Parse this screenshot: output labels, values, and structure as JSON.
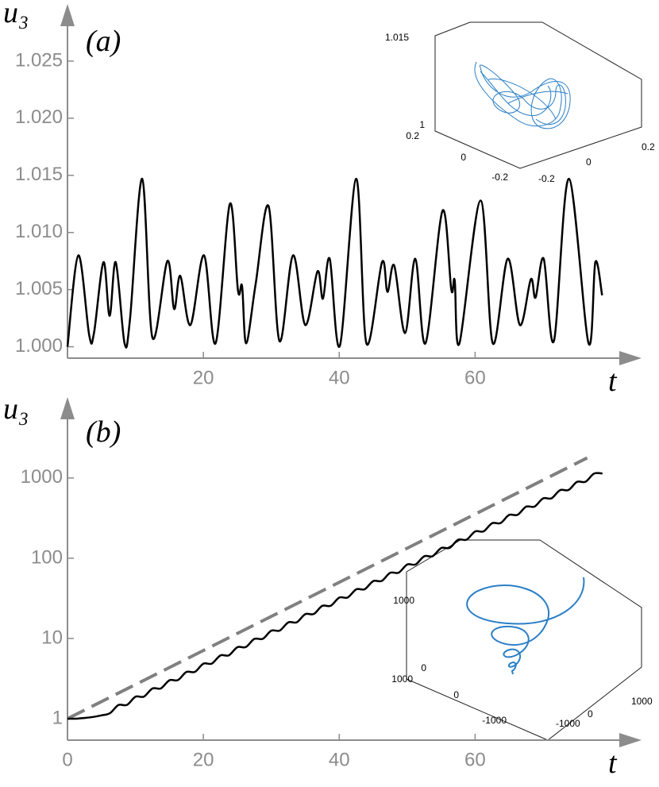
{
  "chart_data": [
    {
      "type": "line",
      "panel_label": "(a)",
      "y_label": "u₃",
      "x_label": "t",
      "x": [
        0,
        1.6,
        3.2,
        3.9,
        5.3,
        6.2,
        7.1,
        8.4,
        9.2,
        11.0,
        12.5,
        14.7,
        15.7,
        16.6,
        18.1,
        20.1,
        21.8,
        23.9,
        25.1,
        25.7,
        26.3,
        27.7,
        29.6,
        31.2,
        33.2,
        35.0,
        36.8,
        37.6,
        38.6,
        40.1,
        42.5,
        44.0,
        46.3,
        47.1,
        48.1,
        49.7,
        51.2,
        52.7,
        55.2,
        56.5,
        57.0,
        57.7,
        60.8,
        62.6,
        64.8,
        66.6,
        68.2,
        68.9,
        70.1,
        71.6,
        73.8,
        76.7,
        77.7,
        78.7
      ],
      "series": [
        {
          "color": "#000000",
          "values": [
            1.0,
            1.008,
            1.001,
            1.0012,
            1.0074,
            1.0027,
            1.0074,
            1.0003,
            1.0024,
            1.0147,
            1.0008,
            1.0075,
            1.0033,
            1.0062,
            1.0019,
            1.008,
            1.0003,
            1.0125,
            1.0049,
            1.0053,
            1.0003,
            1.0055,
            1.0123,
            1.0005,
            1.008,
            1.0019,
            1.0066,
            1.0042,
            1.0077,
            1.0001,
            1.0147,
            1.0003,
            1.0074,
            1.0048,
            1.0071,
            1.0012,
            1.0077,
            1.0003,
            1.0119,
            1.005,
            1.0058,
            1.0003,
            1.0128,
            1.0003,
            1.0077,
            1.0019,
            1.0059,
            1.0043,
            1.0077,
            1.0005,
            1.0147,
            1.0003,
            1.0074,
            1.0045
          ]
        }
      ],
      "xlim": [
        0,
        84.5
      ],
      "ylim": [
        0.999,
        1.03
      ],
      "xticks": [
        20,
        40,
        60
      ],
      "yticks": [
        {
          "value": 1,
          "label": "1.000"
        },
        {
          "value": 1.005,
          "label": "1.005"
        },
        {
          "value": 1.01,
          "label": "1.010"
        },
        {
          "value": 1.015,
          "label": "1.015"
        },
        {
          "value": 1.02,
          "label": "1.020"
        },
        {
          "value": 1.025,
          "label": "1.025"
        }
      ],
      "inset": {
        "z_ticks": [
          1.015,
          1
        ],
        "left_ticks": [
          0.2,
          0,
          -0.2
        ],
        "right_ticks": [
          -0.2,
          0,
          0.2
        ]
      }
    },
    {
      "type": "line",
      "panel_label": "(b)",
      "y_label": "u₃",
      "x_label": "t",
      "log_y": true,
      "series": [
        {
          "color": "#808080",
          "line_style": "dashed",
          "x": [
            0,
            76.5
          ],
          "values": [
            1,
            1780
          ]
        },
        {
          "color": "#000000",
          "x": [
            0,
            1.25,
            2.5,
            3.75,
            5,
            6.25,
            7.5,
            8.75,
            10,
            11.25,
            12.5,
            13.75,
            15,
            16.25,
            17.5,
            18.75,
            20,
            21.25,
            22.5,
            23.75,
            25,
            26.25,
            27.5,
            28.75,
            30,
            31.25,
            32.5,
            33.75,
            35,
            36.25,
            37.5,
            38.75,
            40,
            41.25,
            42.5,
            43.75,
            45,
            46.25,
            47.5,
            48.75,
            50,
            51.25,
            52.5,
            53.75,
            55,
            56.25,
            57.5,
            58.75,
            60,
            61.25,
            62.5,
            63.75,
            65,
            66.25,
            67.5,
            68.75,
            70,
            71.25,
            72.5,
            73.75,
            75,
            76.25,
            77.5,
            78.75
          ],
          "values": [
            1,
            1,
            1.02,
            1.05,
            1.1,
            1.171,
            1.479,
            1.484,
            1.875,
            1.882,
            2.377,
            2.385,
            3.013,
            3.024,
            3.819,
            3.832,
            4.842,
            4.859,
            6.138,
            6.16,
            7.781,
            7.808,
            9.864,
            9.899,
            12.5,
            12.54,
            15.85,
            15.91,
            20.09,
            20.16,
            25.47,
            25.56,
            32.29,
            32.4,
            40.94,
            41.08,
            51.9,
            52.08,
            65.79,
            66.02,
            83.4,
            83.69,
            105.7,
            106.1,
            134,
            134.5,
            169.9,
            170.5,
            215.4,
            216.2,
            273.1,
            274.1,
            346.2,
            347.4,
            438.9,
            440.4,
            556.4,
            558.3,
            705.3,
            707.8,
            894.1,
            897.2,
            1133,
            1137
          ]
        }
      ],
      "xlim": [
        0,
        84.5
      ],
      "ylim": [
        0.54,
        10200
      ],
      "xticks": [
        0,
        20,
        40,
        60
      ],
      "yticks": [
        1,
        10,
        100,
        1000
      ],
      "inset": {
        "z_ticks": [
          1000,
          0
        ],
        "left_ticks": [
          1000,
          0,
          -1000
        ],
        "right_ticks": [
          -1000,
          0,
          1000
        ]
      }
    }
  ]
}
